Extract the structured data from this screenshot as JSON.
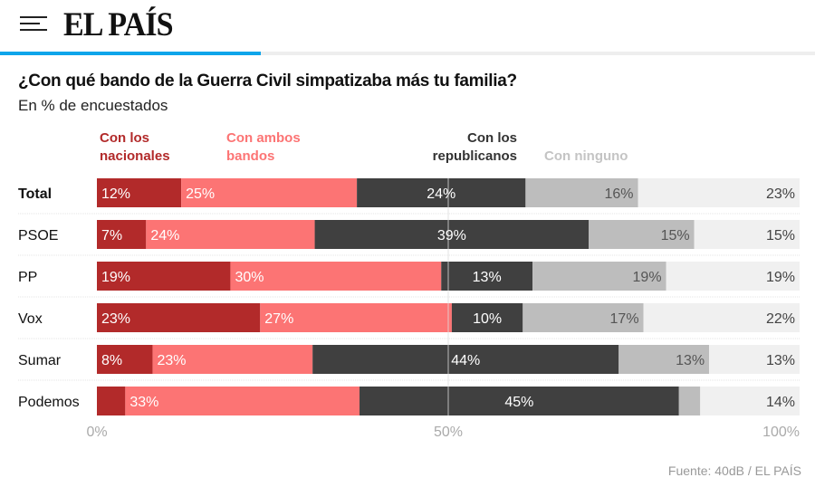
{
  "header": {
    "logo": "EL PAÍS",
    "menu_icon": "hamburger-icon",
    "progress_percent": 32,
    "accent": "#0ea5ea"
  },
  "title": "¿Con qué bando de la Guerra Civil simpatizaba más tu familia?",
  "subtitle": "En % de encuestados",
  "source": "Fuente: 40dB / EL PAÍS",
  "chart_data": {
    "type": "bar",
    "orientation": "horizontal",
    "stacked": true,
    "categories": [
      "Total",
      "PSOE",
      "PP",
      "Vox",
      "Sumar",
      "Podemos"
    ],
    "series": [
      {
        "name": "Con los nacionales",
        "color": "#b22a2a",
        "values": [
          12,
          7,
          19,
          23,
          8,
          4
        ],
        "labels": [
          "12%",
          "7%",
          "19%",
          "23%",
          "8%",
          ""
        ]
      },
      {
        "name": "Con ambos bandos",
        "color": "#fc7474",
        "values": [
          25,
          24,
          30,
          27,
          23,
          33
        ],
        "labels": [
          "25%",
          "24%",
          "30%",
          "27%",
          "23%",
          "33%"
        ]
      },
      {
        "name": "Con los republicanos",
        "color": "#404040",
        "values": [
          24,
          39,
          13,
          10,
          44,
          45
        ],
        "labels": [
          "24%",
          "39%",
          "13%",
          "10%",
          "44%",
          "45%"
        ]
      },
      {
        "name": "Con ninguno",
        "color": "#bdbdbd",
        "values": [
          16,
          15,
          19,
          17,
          13,
          3
        ],
        "labels": [
          "16%",
          "15%",
          "19%",
          "17%",
          "13%",
          ""
        ]
      },
      {
        "name": "",
        "color": "#f0f0f0",
        "values": [
          23,
          15,
          19,
          22,
          13,
          14
        ],
        "labels": [
          "23%",
          "15%",
          "19%",
          "22%",
          "13%",
          "14%"
        ]
      }
    ],
    "xlim": [
      0,
      100
    ],
    "xticks": [
      "0%",
      "50%",
      "100%"
    ],
    "legend_position": "top"
  }
}
